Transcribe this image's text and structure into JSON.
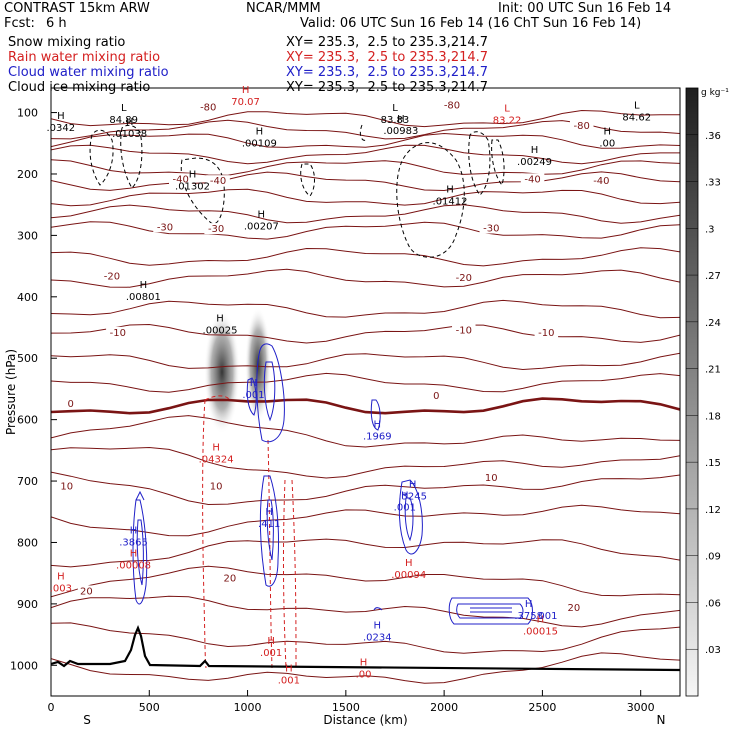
{
  "header": {
    "model": "CONTRAST 15km ARW",
    "center": "NCAR/MMM",
    "init": "Init: 00 UTC Sun 16 Feb 14",
    "fcst_label": "Fcst:",
    "fcst_value": "6 h",
    "valid": "Valid: 06 UTC Sun 16 Feb 14 (16 ChT Sun 16 Feb 14)"
  },
  "fields": [
    {
      "name": "Snow mixing ratio",
      "xy": "XY= 235.3,  2.5 to 235.3,214.7",
      "color": "#000000"
    },
    {
      "name": "Rain water mixing ratio",
      "xy": "XY= 235.3,  2.5 to 235.3,214.7",
      "color": "#d42020"
    },
    {
      "name": "Cloud water mixing ratio",
      "xy": "XY= 235.3,  2.5 to 235.3,214.7",
      "color": "#2020c8"
    },
    {
      "name": "Cloud ice mixing ratio",
      "xy": "XY= 235.3,  2.5 to 235.3,214.7",
      "color": "#000000"
    }
  ],
  "colors": {
    "temperature": "#7a1414",
    "freezing": "#7a1414",
    "terrain": "#000000",
    "snow": "#000000",
    "rain": "#d42020",
    "cloud_water": "#2020c8"
  },
  "chart_data": {
    "type": "cross-section contour",
    "xlabel": "Distance (km)",
    "ylabel": "Pressure (hPa)",
    "xlim": [
      0,
      3200
    ],
    "ylim": [
      1050,
      60
    ],
    "xticks": [
      0,
      500,
      1000,
      1500,
      2000,
      2500,
      3000
    ],
    "yticks": [
      100,
      200,
      300,
      400,
      500,
      600,
      700,
      800,
      900,
      1000
    ],
    "x_end_labels": {
      "left": "S",
      "right": "N"
    },
    "colorbar": {
      "unit": "g kg⁻¹",
      "ticks": [
        ".03",
        ".06",
        ".09",
        ".12",
        ".15",
        ".18",
        ".21",
        ".24",
        ".27",
        ".3",
        ".33",
        ".36"
      ]
    },
    "isotherm_labels": [
      {
        "text": "-80",
        "x": 800,
        "p": 95
      },
      {
        "text": "-80",
        "x": 2040,
        "p": 92
      },
      {
        "text": "-80",
        "x": 2700,
        "p": 125
      },
      {
        "text": "-40",
        "x": 660,
        "p": 212
      },
      {
        "text": "-40",
        "x": 850,
        "p": 215
      },
      {
        "text": "-40",
        "x": 2450,
        "p": 212
      },
      {
        "text": "-40",
        "x": 2800,
        "p": 215
      },
      {
        "text": "-30",
        "x": 580,
        "p": 290
      },
      {
        "text": "-30",
        "x": 840,
        "p": 293
      },
      {
        "text": "-30",
        "x": 2240,
        "p": 292
      },
      {
        "text": "-20",
        "x": 310,
        "p": 370
      },
      {
        "text": "-20",
        "x": 2100,
        "p": 373
      },
      {
        "text": "-10",
        "x": 340,
        "p": 462
      },
      {
        "text": "-10",
        "x": 2100,
        "p": 458
      },
      {
        "text": "-10",
        "x": 2520,
        "p": 462
      },
      {
        "text": "0",
        "x": 100,
        "p": 578
      },
      {
        "text": "0",
        "x": 1960,
        "p": 565
      },
      {
        "text": "10",
        "x": 80,
        "p": 712
      },
      {
        "text": "10",
        "x": 840,
        "p": 712
      },
      {
        "text": "10",
        "x": 2240,
        "p": 698
      },
      {
        "text": "20",
        "x": 180,
        "p": 883
      },
      {
        "text": "20",
        "x": 910,
        "p": 862
      },
      {
        "text": "20",
        "x": 2660,
        "p": 910
      }
    ],
    "extrema": [
      {
        "type": "L",
        "value": "84.89",
        "x": 370,
        "p": 117,
        "color": "snow"
      },
      {
        "type": "H",
        "value": "70.07",
        "x": 990,
        "p": 88,
        "color": "rain"
      },
      {
        "type": "L",
        "value": "83.83",
        "x": 1750,
        "p": 117,
        "color": "snow"
      },
      {
        "type": "L",
        "value": "83.22",
        "x": 2320,
        "p": 118,
        "color": "rain"
      },
      {
        "type": "L",
        "value": "84.62",
        "x": 2980,
        "p": 113,
        "color": "snow"
      },
      {
        "type": "H",
        "value": ".0342",
        "x": 50,
        "p": 130,
        "color": "snow"
      },
      {
        "type": "H",
        "value": ".01038",
        "x": 400,
        "p": 140,
        "color": "snow"
      },
      {
        "type": "H",
        "value": ".00109",
        "x": 1060,
        "p": 155,
        "color": "snow"
      },
      {
        "type": "H",
        "value": ".00983",
        "x": 1780,
        "p": 135,
        "color": "snow"
      },
      {
        "type": "H",
        "value": ".00",
        "x": 2830,
        "p": 155,
        "color": "snow"
      },
      {
        "type": "H",
        "value": ".00249",
        "x": 2460,
        "p": 185,
        "color": "snow"
      },
      {
        "type": "H",
        "value": ".01302",
        "x": 720,
        "p": 225,
        "color": "snow"
      },
      {
        "type": "H",
        "value": ".01412",
        "x": 2030,
        "p": 250,
        "color": "snow"
      },
      {
        "type": "H",
        "value": ".00207",
        "x": 1070,
        "p": 290,
        "color": "snow"
      },
      {
        "type": "H",
        "value": ".00801",
        "x": 470,
        "p": 405,
        "color": "snow"
      },
      {
        "type": "H",
        "value": ".00025",
        "x": 860,
        "p": 460,
        "color": "snow"
      },
      {
        "type": "H",
        "value": ".001",
        "x": 1030,
        "p": 565,
        "color": "cloud_water"
      },
      {
        "type": "H",
        "value": ".1969",
        "x": 1660,
        "p": 632,
        "color": "cloud_water"
      },
      {
        "type": "H",
        "value": ".04324",
        "x": 840,
        "p": 670,
        "color": "rain"
      },
      {
        "type": "H",
        "value": ".3245",
        "x": 1840,
        "p": 730,
        "color": "cloud_water"
      },
      {
        "type": "H",
        "value": ".001",
        "x": 1800,
        "p": 748,
        "color": "cloud_water"
      },
      {
        "type": "H",
        "value": ".411",
        "x": 1110,
        "p": 775,
        "color": "cloud_water"
      },
      {
        "type": "H",
        "value": ".3865",
        "x": 420,
        "p": 805,
        "color": "cloud_water"
      },
      {
        "type": "H",
        "value": ".00008",
        "x": 420,
        "p": 842,
        "color": "rain"
      },
      {
        "type": "H",
        "value": ".00094",
        "x": 1820,
        "p": 858,
        "color": "rain"
      },
      {
        "type": "H",
        "value": ".003",
        "x": 50,
        "p": 880,
        "color": "rain"
      },
      {
        "type": "H",
        "value": ".3758",
        "x": 2430,
        "p": 925,
        "color": "cloud_water"
      },
      {
        "type": "H",
        "value": ".00015",
        "x": 2490,
        "p": 950,
        "color": "rain"
      },
      {
        "type": "H",
        "value": ".0234",
        "x": 1660,
        "p": 960,
        "color": "cloud_water"
      },
      {
        "type": "H",
        "value": ".001",
        "x": 1120,
        "p": 985,
        "color": "rain"
      },
      {
        "type": "H",
        "value": ".001",
        "x": 1210,
        "p": 1030,
        "color": "rain"
      },
      {
        "type": "H",
        "value": ".00",
        "x": 1590,
        "p": 1020,
        "color": "rain"
      }
    ],
    "inline_labels": [
      {
        "text": ".001",
        "x": 2520,
        "p": 925,
        "color": "cloud_water"
      }
    ]
  }
}
